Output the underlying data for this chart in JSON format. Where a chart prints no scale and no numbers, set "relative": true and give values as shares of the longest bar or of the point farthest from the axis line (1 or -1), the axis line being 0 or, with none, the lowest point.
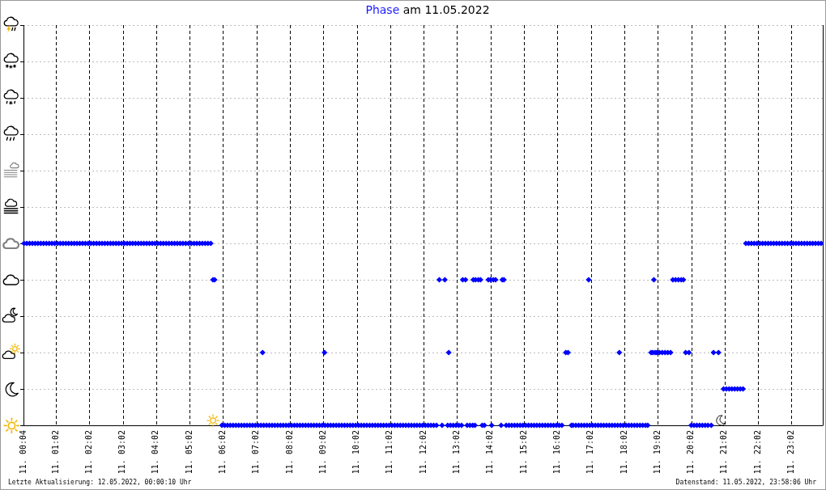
{
  "chart_data": {
    "type": "scatter",
    "title": "Phase am 11.05.2022",
    "relative": true,
    "color": "#0000ff",
    "marker": "diamond",
    "grid": true,
    "xlim": [
      "2022-05-11T00:04",
      "2022-05-11T23:58"
    ],
    "xticks": [
      {
        "value": "2022-05-11T00:04",
        "label": "11. 00:04"
      },
      {
        "value": "2022-05-11T01:02",
        "label": "11. 01:02"
      },
      {
        "value": "2022-05-11T02:02",
        "label": "11. 02:02"
      },
      {
        "value": "2022-05-11T03:02",
        "label": "11. 03:02"
      },
      {
        "value": "2022-05-11T04:02",
        "label": "11. 04:02"
      },
      {
        "value": "2022-05-11T05:02",
        "label": "11. 05:02"
      },
      {
        "value": "2022-05-11T06:02",
        "label": "11. 06:02"
      },
      {
        "value": "2022-05-11T07:02",
        "label": "11. 07:02"
      },
      {
        "value": "2022-05-11T08:02",
        "label": "11. 08:02"
      },
      {
        "value": "2022-05-11T09:02",
        "label": "11. 09:02"
      },
      {
        "value": "2022-05-11T10:02",
        "label": "11. 10:02"
      },
      {
        "value": "2022-05-11T11:02",
        "label": "11. 11:02"
      },
      {
        "value": "2022-05-11T12:02",
        "label": "11. 12:02"
      },
      {
        "value": "2022-05-11T13:02",
        "label": "11. 13:02"
      },
      {
        "value": "2022-05-11T14:02",
        "label": "11. 14:02"
      },
      {
        "value": "2022-05-11T15:02",
        "label": "11. 15:02"
      },
      {
        "value": "2022-05-11T16:02",
        "label": "11. 16:02"
      },
      {
        "value": "2022-05-11T17:02",
        "label": "11. 17:02"
      },
      {
        "value": "2022-05-11T18:02",
        "label": "11. 18:02"
      },
      {
        "value": "2022-05-11T19:02",
        "label": "11. 19:02"
      },
      {
        "value": "2022-05-11T20:02",
        "label": "11. 20:02"
      },
      {
        "value": "2022-05-11T21:02",
        "label": "11. 21:02"
      },
      {
        "value": "2022-05-11T22:02",
        "label": "11. 22:02"
      },
      {
        "value": "2022-05-11T23:02",
        "label": "11. 23:02"
      }
    ],
    "x": [
      "2022-05-11T00:05",
      "2022-05-11T00:10",
      "2022-05-11T00:15",
      "2022-05-11T00:20",
      "2022-05-11T00:25",
      "2022-05-11T00:30",
      "2022-05-11T00:35",
      "2022-05-11T00:40",
      "2022-05-11T00:45",
      "2022-05-11T00:50",
      "2022-05-11T00:55",
      "2022-05-11T01:00",
      "2022-05-11T01:05",
      "2022-05-11T01:10",
      "2022-05-11T01:15",
      "2022-05-11T01:20",
      "2022-05-11T01:25",
      "2022-05-11T01:30",
      "2022-05-11T01:35",
      "2022-05-11T01:40",
      "2022-05-11T01:45",
      "2022-05-11T01:50",
      "2022-05-11T01:55",
      "2022-05-11T02:00",
      "2022-05-11T02:05",
      "2022-05-11T02:10",
      "2022-05-11T02:15",
      "2022-05-11T02:20",
      "2022-05-11T02:25",
      "2022-05-11T02:30",
      "2022-05-11T02:35",
      "2022-05-11T02:40",
      "2022-05-11T02:45",
      "2022-05-11T02:50",
      "2022-05-11T02:55",
      "2022-05-11T03:00",
      "2022-05-11T03:05",
      "2022-05-11T03:10",
      "2022-05-11T03:15",
      "2022-05-11T03:20",
      "2022-05-11T03:25",
      "2022-05-11T03:30",
      "2022-05-11T03:35",
      "2022-05-11T03:40",
      "2022-05-11T03:45",
      "2022-05-11T03:50",
      "2022-05-11T03:55",
      "2022-05-11T04:00",
      "2022-05-11T04:05",
      "2022-05-11T04:10",
      "2022-05-11T04:15",
      "2022-05-11T04:20",
      "2022-05-11T04:25",
      "2022-05-11T04:30",
      "2022-05-11T04:35",
      "2022-05-11T04:40",
      "2022-05-11T04:45",
      "2022-05-11T04:50",
      "2022-05-11T04:55",
      "2022-05-11T05:00",
      "2022-05-11T05:05",
      "2022-05-11T05:10",
      "2022-05-11T05:15",
      "2022-05-11T05:20",
      "2022-05-11T05:25",
      "2022-05-11T05:30",
      "2022-05-11T05:35",
      "2022-05-11T05:40",
      "2022-05-11T05:44",
      "2022-05-11T05:47",
      "2022-05-11T06:00",
      "2022-05-11T06:05",
      "2022-05-11T06:10",
      "2022-05-11T06:15",
      "2022-05-11T06:20",
      "2022-05-11T06:25",
      "2022-05-11T06:30",
      "2022-05-11T06:35",
      "2022-05-11T06:40",
      "2022-05-11T06:45",
      "2022-05-11T06:50",
      "2022-05-11T06:55",
      "2022-05-11T07:00",
      "2022-05-11T07:05",
      "2022-05-11T07:10",
      "2022-05-11T07:13",
      "2022-05-11T07:15",
      "2022-05-11T07:20",
      "2022-05-11T07:25",
      "2022-05-11T07:30",
      "2022-05-11T07:35",
      "2022-05-11T07:40",
      "2022-05-11T07:45",
      "2022-05-11T07:50",
      "2022-05-11T07:55",
      "2022-05-11T08:00",
      "2022-05-11T08:05",
      "2022-05-11T08:10",
      "2022-05-11T08:15",
      "2022-05-11T08:20",
      "2022-05-11T08:25",
      "2022-05-11T08:30",
      "2022-05-11T08:35",
      "2022-05-11T08:40",
      "2022-05-11T08:45",
      "2022-05-11T08:50",
      "2022-05-11T08:55",
      "2022-05-11T09:00",
      "2022-05-11T09:04",
      "2022-05-11T09:05",
      "2022-05-11T09:10",
      "2022-05-11T09:15",
      "2022-05-11T09:20",
      "2022-05-11T09:25",
      "2022-05-11T09:30",
      "2022-05-11T09:35",
      "2022-05-11T09:40",
      "2022-05-11T09:45",
      "2022-05-11T09:50",
      "2022-05-11T09:55",
      "2022-05-11T10:00",
      "2022-05-11T10:05",
      "2022-05-11T10:10",
      "2022-05-11T10:15",
      "2022-05-11T10:20",
      "2022-05-11T10:25",
      "2022-05-11T10:30",
      "2022-05-11T10:35",
      "2022-05-11T10:40",
      "2022-05-11T10:45",
      "2022-05-11T10:50",
      "2022-05-11T10:55",
      "2022-05-11T11:00",
      "2022-05-11T11:05",
      "2022-05-11T11:10",
      "2022-05-11T11:15",
      "2022-05-11T11:20",
      "2022-05-11T11:25",
      "2022-05-11T11:30",
      "2022-05-11T11:35",
      "2022-05-11T11:40",
      "2022-05-11T11:45",
      "2022-05-11T11:50",
      "2022-05-11T11:55",
      "2022-05-11T12:00",
      "2022-05-11T12:05",
      "2022-05-11T12:10",
      "2022-05-11T12:15",
      "2022-05-11T12:20",
      "2022-05-11T12:25",
      "2022-05-11T12:30",
      "2022-05-11T12:35",
      "2022-05-11T12:40",
      "2022-05-11T12:45",
      "2022-05-11T12:47",
      "2022-05-11T12:50",
      "2022-05-11T12:55",
      "2022-05-11T13:00",
      "2022-05-11T13:05",
      "2022-05-11T13:10",
      "2022-05-11T13:12",
      "2022-05-11T13:17",
      "2022-05-11T13:20",
      "2022-05-11T13:25",
      "2022-05-11T13:30",
      "2022-05-11T13:31",
      "2022-05-11T13:34",
      "2022-05-11T13:35",
      "2022-05-11T13:40",
      "2022-05-11T13:44",
      "2022-05-11T13:47",
      "2022-05-11T13:51",
      "2022-05-11T13:58",
      "2022-05-11T14:02",
      "2022-05-11T14:04",
      "2022-05-11T14:07",
      "2022-05-11T14:11",
      "2022-05-11T14:21",
      "2022-05-11T14:23",
      "2022-05-11T14:26",
      "2022-05-11T14:30",
      "2022-05-11T14:35",
      "2022-05-11T14:40",
      "2022-05-11T14:45",
      "2022-05-11T14:50",
      "2022-05-11T14:55",
      "2022-05-11T15:00",
      "2022-05-11T15:05",
      "2022-05-11T15:10",
      "2022-05-11T15:15",
      "2022-05-11T15:20",
      "2022-05-11T15:25",
      "2022-05-11T15:30",
      "2022-05-11T15:35",
      "2022-05-11T15:40",
      "2022-05-11T15:45",
      "2022-05-11T15:50",
      "2022-05-11T15:55",
      "2022-05-11T16:00",
      "2022-05-11T16:05",
      "2022-05-11T16:10",
      "2022-05-11T16:17",
      "2022-05-11T16:21",
      "2022-05-11T16:27",
      "2022-05-11T16:30",
      "2022-05-11T16:35",
      "2022-05-11T16:40",
      "2022-05-11T16:45",
      "2022-05-11T16:50",
      "2022-05-11T16:55",
      "2022-05-11T16:58",
      "2022-05-11T17:00",
      "2022-05-11T17:05",
      "2022-05-11T17:10",
      "2022-05-11T17:15",
      "2022-05-11T17:20",
      "2022-05-11T17:25",
      "2022-05-11T17:30",
      "2022-05-11T17:35",
      "2022-05-11T17:40",
      "2022-05-11T17:45",
      "2022-05-11T17:50",
      "2022-05-11T17:53",
      "2022-05-11T17:55",
      "2022-05-11T18:00",
      "2022-05-11T18:05",
      "2022-05-11T18:10",
      "2022-05-11T18:15",
      "2022-05-11T18:20",
      "2022-05-11T18:25",
      "2022-05-11T18:30",
      "2022-05-11T18:35",
      "2022-05-11T18:40",
      "2022-05-11T18:44",
      "2022-05-11T18:50",
      "2022-05-11T18:53",
      "2022-05-11T18:55",
      "2022-05-11T18:57",
      "2022-05-11T19:00",
      "2022-05-11T19:05",
      "2022-05-11T19:10",
      "2022-05-11T19:15",
      "2022-05-11T19:20",
      "2022-05-11T19:25",
      "2022-05-11T19:29",
      "2022-05-11T19:34",
      "2022-05-11T19:39",
      "2022-05-11T19:44",
      "2022-05-11T19:48",
      "2022-05-11T19:52",
      "2022-05-11T19:58",
      "2022-05-11T20:02",
      "2022-05-11T20:07",
      "2022-05-11T20:12",
      "2022-05-11T20:17",
      "2022-05-11T20:22",
      "2022-05-11T20:27",
      "2022-05-11T20:32",
      "2022-05-11T20:38",
      "2022-05-11T20:42",
      "2022-05-11T20:51",
      "2022-05-11T21:00",
      "2022-05-11T21:05",
      "2022-05-11T21:10",
      "2022-05-11T21:15",
      "2022-05-11T21:20",
      "2022-05-11T21:25",
      "2022-05-11T21:30",
      "2022-05-11T21:35",
      "2022-05-11T21:40",
      "2022-05-11T21:45",
      "2022-05-11T21:50",
      "2022-05-11T21:55",
      "2022-05-11T22:00",
      "2022-05-11T22:05",
      "2022-05-11T22:10",
      "2022-05-11T22:15",
      "2022-05-11T22:20",
      "2022-05-11T22:25",
      "2022-05-11T22:30",
      "2022-05-11T22:35",
      "2022-05-11T22:40",
      "2022-05-11T22:45",
      "2022-05-11T22:50",
      "2022-05-11T22:55",
      "2022-05-11T23:00",
      "2022-05-11T23:05",
      "2022-05-11T23:10",
      "2022-05-11T23:15",
      "2022-05-11T23:20",
      "2022-05-11T23:25",
      "2022-05-11T23:30",
      "2022-05-11T23:35",
      "2022-05-11T23:40",
      "2022-05-11T23:45",
      "2022-05-11T23:50",
      "2022-05-11T23:55"
    ],
    "values": [
      1,
      1,
      1,
      1,
      1,
      1,
      1,
      1,
      1,
      1,
      1,
      1,
      1,
      1,
      1,
      1,
      1,
      1,
      1,
      1,
      1,
      1,
      1,
      1,
      1,
      1,
      1,
      1,
      1,
      1,
      1,
      1,
      1,
      1,
      1,
      1,
      1,
      1,
      1,
      1,
      1,
      1,
      1,
      1,
      1,
      1,
      1,
      1,
      1,
      1,
      1,
      1,
      1,
      1,
      1,
      1,
      1,
      1,
      1,
      1,
      1,
      1,
      1,
      1,
      1,
      1,
      1,
      1,
      0.8,
      0.8,
      0,
      0,
      0,
      0,
      0,
      0,
      0,
      0,
      0,
      0,
      0,
      0,
      0,
      0,
      0,
      0.4,
      0,
      0,
      0,
      0,
      0,
      0,
      0,
      0,
      0,
      0,
      0,
      0,
      0,
      0,
      0,
      0,
      0,
      0,
      0,
      0,
      0,
      0,
      0.4,
      0,
      0,
      0,
      0,
      0,
      0,
      0,
      0,
      0,
      0,
      0,
      0,
      0,
      0,
      0,
      0,
      0,
      0,
      0,
      0,
      0,
      0,
      0,
      0,
      0,
      0,
      0,
      0,
      0,
      0,
      0,
      0,
      0,
      0,
      0,
      0,
      0,
      0,
      0,
      0,
      0,
      0.8,
      0,
      0.8,
      0,
      0.4,
      0,
      0,
      0,
      0,
      0,
      0.8,
      0.8,
      0,
      0,
      0,
      0.8,
      0,
      0.8,
      0.8,
      0.8,
      0,
      0,
      0.8,
      0.8,
      0,
      0.8,
      0.8,
      0,
      0.8,
      0.8,
      0,
      0,
      0,
      0,
      0,
      0,
      0,
      0,
      0,
      0,
      0,
      0,
      0,
      0,
      0,
      0,
      0,
      0,
      0,
      0,
      0,
      0.4,
      0.4,
      0,
      0,
      0,
      0,
      0,
      0,
      0,
      0.8,
      0,
      0,
      0,
      0,
      0,
      0,
      0,
      0,
      0,
      0,
      0,
      0.4,
      0,
      0,
      0,
      0,
      0,
      0,
      0,
      0,
      0,
      0,
      0,
      0.4,
      0.4,
      0.8,
      0.4,
      0.4,
      0.4,
      0.4,
      0.4,
      0.4,
      0.4,
      0.8,
      0.8,
      0.8,
      0.8,
      0.8,
      0.4,
      0.4,
      0,
      0,
      0,
      0,
      0,
      0,
      0,
      0,
      0.4,
      0.4,
      0.2,
      0.2,
      0.2,
      0.2,
      0.2,
      0.2,
      0.2,
      0.2,
      1,
      1,
      1,
      1,
      1,
      1,
      1,
      1,
      1,
      1,
      1,
      1,
      1,
      1,
      1,
      1,
      1,
      1,
      1,
      1,
      1,
      1,
      1,
      1,
      1,
      1,
      1,
      1
    ],
    "annotations": [
      "Letzte Aktualisierung: 12.05.2022, 00:00:10 Uhr",
      "Datenstand: 11.05.2022, 23:58:06 Uhr"
    ]
  }
}
